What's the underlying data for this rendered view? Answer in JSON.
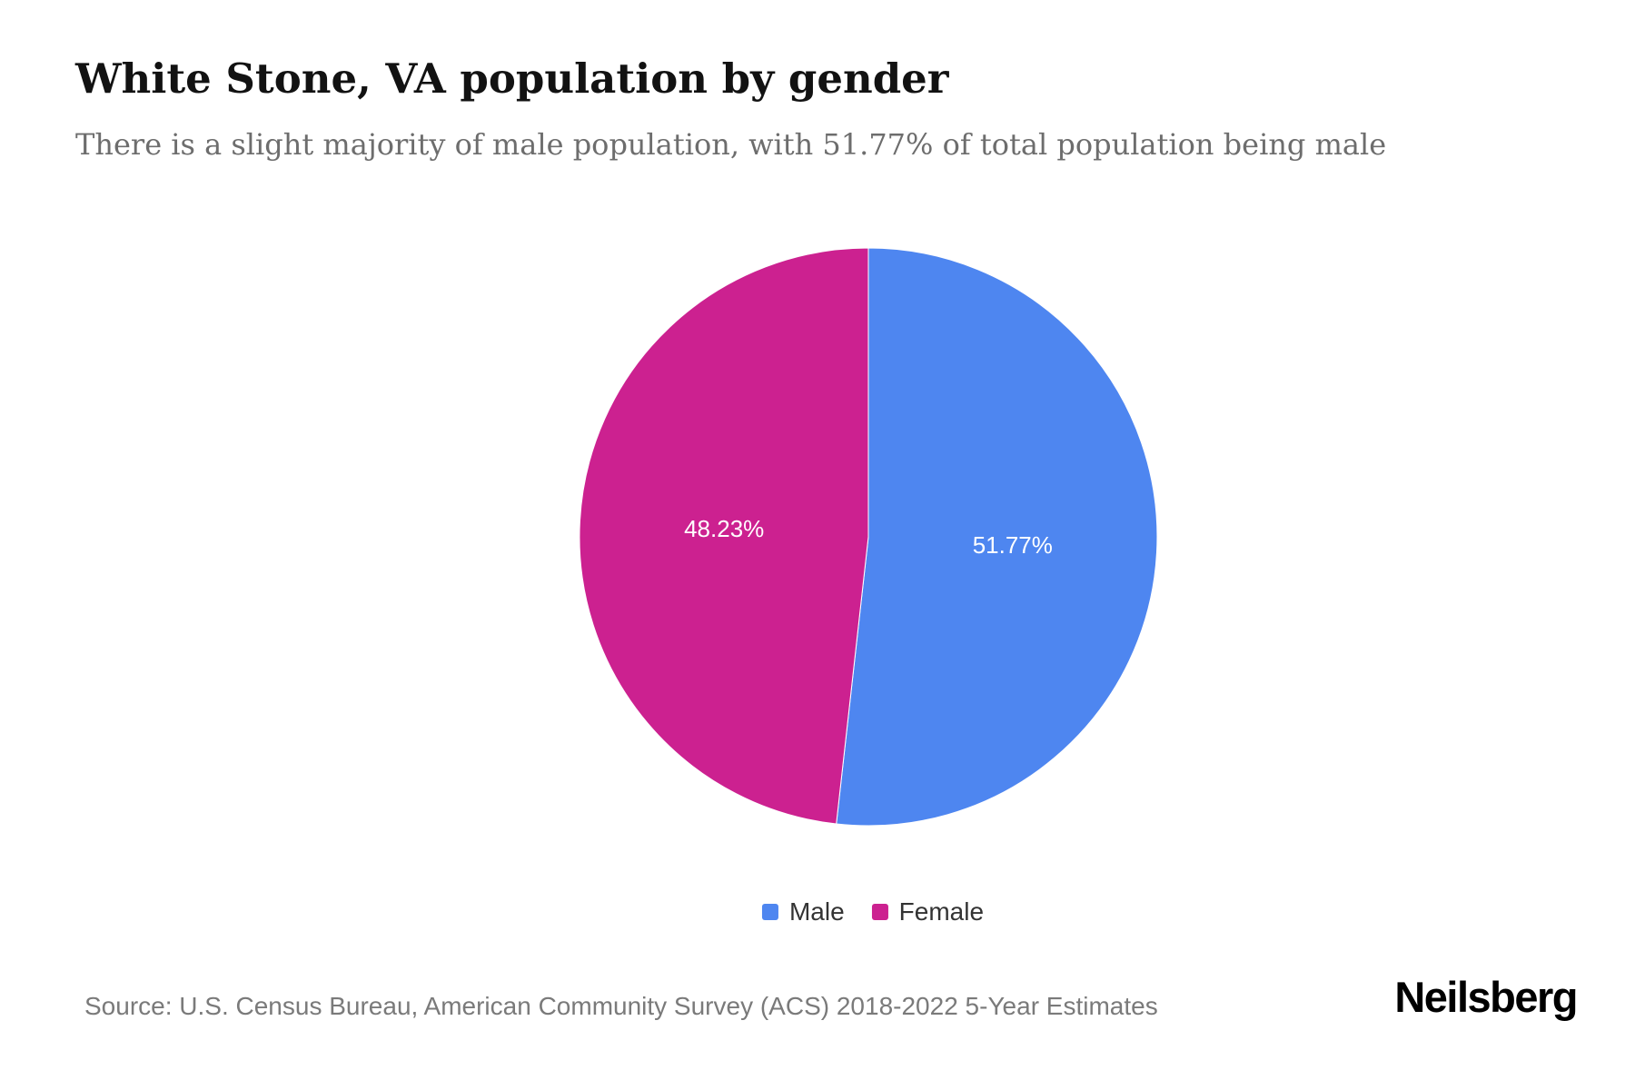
{
  "page": {
    "title": "White Stone, VA population by gender",
    "subtitle": "There is a slight majority of male population, with 51.77% of total population being male",
    "source": "Source: U.S. Census Bureau, American Community Survey (ACS) 2018-2022 5-Year Estimates",
    "brand": "Neilsberg"
  },
  "chart_data": {
    "type": "pie",
    "title": "White Stone, VA population by gender",
    "legend_position": "bottom",
    "start_angle_deg": 0,
    "direction": "clockwise",
    "slices": [
      {
        "label": "Male",
        "value": 51.77,
        "display": "51.77%",
        "color": "#4e86f0"
      },
      {
        "label": "Female",
        "value": 48.23,
        "display": "48.23%",
        "color": "#cc2190"
      }
    ]
  }
}
